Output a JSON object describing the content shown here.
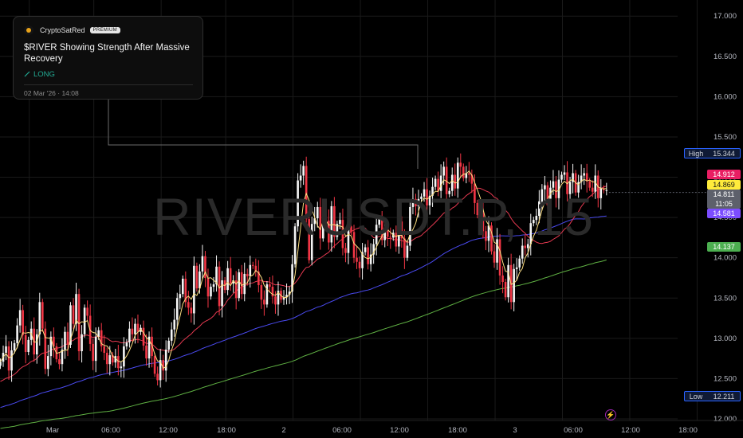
{
  "watermark": "RIVERUSDT.P, 15",
  "idea": {
    "author": "CryptoSatRed",
    "badge": "PREMIUM",
    "title": "$RIVER Showing Strength After Massive Recovery",
    "direction": "LONG",
    "published": "02 Mar '26 · 14:08"
  },
  "markers": {
    "high_label": "High",
    "high_value": "15.344",
    "low_label": "Low",
    "low_value": "12.211"
  },
  "price_labels": [
    {
      "value": "14.912",
      "bg": "#e91e63",
      "fg": "#ffffff"
    },
    {
      "value": "14.869",
      "bg": "#ffeb3b",
      "fg": "#131313"
    },
    {
      "value": "14.811",
      "bg": "#5d606b",
      "fg": "#ffffff"
    },
    {
      "value": "11:05",
      "bg": "#5d606b",
      "fg": "#ffffff"
    },
    {
      "value": "14.581",
      "bg": "#7c4dff",
      "fg": "#ffffff"
    },
    {
      "value": "14.137",
      "bg": "#4caf50",
      "fg": "#ffffff"
    }
  ],
  "colors": {
    "up": "#f5f5f5",
    "down": "#f23645",
    "ma_yellow": "#ffe082",
    "ma_red": "#e53950",
    "ma_blue": "#4a4af0",
    "ma_green": "#5fb043"
  },
  "chart_data": {
    "type": "candlestick",
    "symbol": "RIVERUSDT.P",
    "interval": "15",
    "y_ticks": [
      "12.000",
      "12.500",
      "13.000",
      "13.500",
      "14.000",
      "14.500",
      "15.000",
      "15.500",
      "16.000",
      "16.500",
      "17.000"
    ],
    "ylim": [
      11.98,
      17.2
    ],
    "x_ticks": [
      "Mar",
      "06:00",
      "12:00",
      "18:00",
      "2",
      "06:00",
      "12:00",
      "18:00",
      "3",
      "06:00",
      "12:00",
      "18:00"
    ],
    "last_price": 14.811,
    "countdown": "11:05",
    "high": 15.344,
    "low": 12.211,
    "ma_last": {
      "yellow": 14.869,
      "red": 14.912,
      "blue": 14.581,
      "green": 14.137
    },
    "close": [
      12.71,
      12.82,
      12.9,
      12.6,
      12.85,
      12.94,
      13.16,
      13.35,
      13.04,
      12.83,
      12.98,
      13.12,
      12.8,
      13.05,
      13.45,
      13.12,
      12.62,
      12.78,
      13.02,
      12.9,
      12.74,
      12.68,
      12.86,
      13.08,
      12.92,
      13.41,
      13.18,
      13.55,
      12.84,
      13.05,
      13.38,
      13.28,
      12.93,
      12.72,
      13.02,
      13.1,
      12.9,
      12.82,
      12.68,
      12.79,
      12.7,
      12.78,
      12.63,
      12.65,
      12.9,
      12.95,
      13.12,
      13.05,
      13.18,
      13.08,
      13.13,
      12.91,
      12.75,
      13.02,
      12.78,
      12.56,
      12.48,
      12.73,
      12.6,
      12.86,
      12.97,
      13.11,
      13.23,
      13.5,
      13.55,
      13.74,
      13.45,
      13.38,
      13.31,
      13.9,
      13.62,
      13.83,
      14.02,
      13.75,
      13.52,
      13.64,
      13.67,
      13.89,
      13.4,
      13.72,
      13.6,
      13.87,
      13.68,
      13.72,
      13.5,
      13.82,
      13.55,
      13.8,
      13.77,
      13.91,
      13.9,
      13.83,
      13.66,
      13.48,
      13.42,
      13.67,
      13.64,
      13.52,
      13.42,
      13.59,
      13.48,
      13.51,
      13.54,
      13.58,
      13.92,
      14.39,
      14.96,
      15.02,
      15.14,
      14.48,
      13.97,
      14.42,
      14.49,
      14.63,
      14.24,
      14.51,
      14.46,
      14.19,
      14.64,
      14.26,
      14.42,
      14.47,
      14.12,
      14.06,
      14.39,
      14.32,
      14.0,
      13.95,
      13.87,
      14.07,
      14.13,
      13.92,
      14.04,
      14.17,
      14.41,
      14.49,
      14.22,
      14.36,
      14.26,
      14.25,
      14.31,
      14.14,
      14.45,
      14.24,
      14.0,
      14.15,
      14.63,
      14.73,
      14.64,
      14.73,
      14.76,
      14.85,
      14.65,
      14.77,
      14.88,
      14.98,
      14.83,
      15.02,
      15.13,
      14.79,
      14.83,
      15.03,
      14.86,
      15.18,
      15.13,
      14.99,
      15.05,
      15.03,
      14.92,
      14.68,
      14.53,
      14.56,
      14.33,
      14.21,
      14.4,
      14.08,
      13.94,
      14.23,
      13.78,
      13.7,
      13.51,
      13.91,
      13.45,
      13.86,
      13.88,
      13.99,
      14.15,
      14.12,
      14.17,
      14.43,
      14.47,
      14.52,
      14.7,
      14.85,
      14.9,
      14.65,
      14.87,
      14.95,
      14.74,
      14.97,
      15.03,
      15.06,
      14.79,
      14.94,
      15.05,
      14.81,
      14.94,
      15.02,
      15.05,
      14.95,
      14.87,
      14.82,
      15.02,
      14.74,
      14.86,
      14.84,
      14.84
    ]
  }
}
